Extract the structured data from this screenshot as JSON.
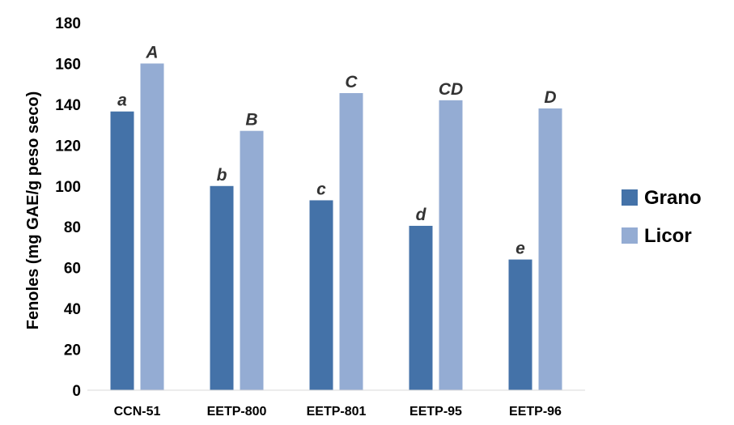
{
  "chart_data": {
    "type": "bar",
    "ylabel": "Fenoles (mg GAE/g peso seco)",
    "xlabel": "",
    "ylim": [
      0,
      180
    ],
    "yticks": [
      0,
      20,
      40,
      60,
      80,
      100,
      120,
      140,
      160,
      180
    ],
    "categories": [
      "CCN-51",
      "EETP-800",
      "EETP-801",
      "EETP-95",
      "EETP-96"
    ],
    "series": [
      {
        "name": "Grano",
        "color": "#4472a8",
        "values": [
          136.5,
          100,
          93,
          80.5,
          64
        ],
        "letters": [
          "a",
          "b",
          "c",
          "d",
          "e"
        ]
      },
      {
        "name": "Licor",
        "color": "#94acd3",
        "values": [
          160,
          127,
          145.5,
          142,
          138
        ],
        "letters": [
          "A",
          "B",
          "C",
          "CD",
          "D"
        ]
      }
    ],
    "legend_position": "right",
    "grid": false
  }
}
